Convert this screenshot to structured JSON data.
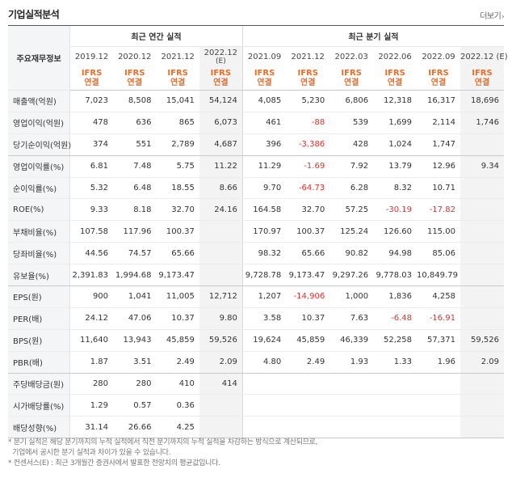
{
  "title": "기업실적분석",
  "more_label": "더보기",
  "header": {
    "row_label": "주요재무정보",
    "annual_group": "최근 연간 실적",
    "quarter_group": "최근 분기 실적",
    "annual_periods": [
      "2019.12",
      "2020.12",
      "2021.12",
      "2022.12\n(E)"
    ],
    "annual_periods_display": [
      {
        "line1": "2019.12",
        "line2": ""
      },
      {
        "line1": "2020.12",
        "line2": ""
      },
      {
        "line1": "2021.12",
        "line2": ""
      },
      {
        "line1": "2022.12",
        "line2": "(E)"
      }
    ],
    "quarter_periods_display": [
      {
        "line1": "2021.09",
        "line2": ""
      },
      {
        "line1": "2021.12",
        "line2": ""
      },
      {
        "line1": "2022.03",
        "line2": ""
      },
      {
        "line1": "2022.06",
        "line2": ""
      },
      {
        "line1": "2022.09",
        "line2": ""
      },
      {
        "line1": "2022.12 (E)",
        "line2": ""
      }
    ],
    "ifrs_line1": "IFRS",
    "ifrs_line2": "연결"
  },
  "rows": [
    {
      "label": "매출액(억원)",
      "values": [
        "7,023",
        "8,508",
        "15,041",
        "54,124",
        "4,085",
        "5,230",
        "6,806",
        "12,318",
        "16,317",
        "18,696"
      ]
    },
    {
      "label": "영업이익(억원)",
      "values": [
        "478",
        "636",
        "865",
        "6,073",
        "461",
        "-88",
        "539",
        "1,699",
        "2,114",
        "1,746"
      ]
    },
    {
      "label": "당기순이익(억원)",
      "values": [
        "374",
        "551",
        "2,789",
        "4,687",
        "396",
        "-3,386",
        "428",
        "1,024",
        "1,747",
        ""
      ]
    },
    {
      "label": "영업이익률(%)",
      "values": [
        "6.81",
        "7.48",
        "5.75",
        "11.22",
        "11.29",
        "-1.69",
        "7.92",
        "13.79",
        "12.96",
        "9.34"
      ]
    },
    {
      "label": "순이익률(%)",
      "values": [
        "5.32",
        "6.48",
        "18.55",
        "8.66",
        "9.70",
        "-64.73",
        "6.28",
        "8.32",
        "10.71",
        ""
      ]
    },
    {
      "label": "ROE(%)",
      "values": [
        "9.33",
        "8.18",
        "32.70",
        "24.16",
        "164.58",
        "32.70",
        "57.25",
        "-30.19",
        "-17.82",
        ""
      ]
    },
    {
      "label": "부채비율(%)",
      "values": [
        "107.58",
        "117.96",
        "100.37",
        "",
        "170.97",
        "100.37",
        "125.24",
        "126.60",
        "115.00",
        ""
      ]
    },
    {
      "label": "당좌비율(%)",
      "values": [
        "44.56",
        "74.57",
        "65.66",
        "",
        "98.32",
        "65.66",
        "90.82",
        "94.98",
        "85.06",
        ""
      ]
    },
    {
      "label": "유보율(%)",
      "values": [
        "2,391.83",
        "1,994.68",
        "9,173.47",
        "",
        "9,728.78",
        "9,173.47",
        "9,297.26",
        "9,778.03",
        "10,849.79",
        ""
      ]
    },
    {
      "label": "EPS(원)",
      "values": [
        "900",
        "1,041",
        "11,005",
        "12,712",
        "1,207",
        "-14,906",
        "1,000",
        "1,836",
        "4,258",
        ""
      ]
    },
    {
      "label": "PER(배)",
      "values": [
        "24.12",
        "47.06",
        "10.37",
        "9.80",
        "3.58",
        "10.37",
        "7.63",
        "-6.48",
        "-16.91",
        ""
      ]
    },
    {
      "label": "BPS(원)",
      "values": [
        "11,640",
        "13,943",
        "45,859",
        "59,526",
        "19,624",
        "45,859",
        "46,339",
        "52,258",
        "57,371",
        "59,526"
      ]
    },
    {
      "label": "PBR(배)",
      "values": [
        "1.87",
        "3.51",
        "2.49",
        "2.09",
        "4.80",
        "2.49",
        "1.93",
        "1.33",
        "1.96",
        "2.09"
      ]
    },
    {
      "label": "주당배당금(원)",
      "values": [
        "280",
        "280",
        "410",
        "414",
        "",
        "",
        "",
        "",
        "",
        ""
      ]
    },
    {
      "label": "시가배당률(%)",
      "values": [
        "1.29",
        "0.57",
        "0.36",
        "",
        "",
        "",
        "",
        "",
        "",
        ""
      ]
    },
    {
      "label": "배당성향(%)",
      "values": [
        "31.14",
        "26.66",
        "4.25",
        "",
        "",
        "",
        "",
        "",
        "",
        ""
      ]
    }
  ],
  "group_breaks_after": [
    2,
    8,
    12
  ],
  "notes": [
    "* 분기 실적은 해당 분기까지의 누적 실적에서 직전 분기까지의 누적 실적을 차감하는 방식으로 계산되므로,",
    "  기업에서 공시한 분기 실적과 차이가 있을 수 있습니다.",
    "* 컨센서스(E) : 최근 3개월간 증권사에서 발표한 전망치의 평균값입니다."
  ],
  "colors": {
    "ifrs": "#e96d2b",
    "negative": "#e0302c",
    "header_bg": "#f4f5f7",
    "estimate_bg": "#f3f3f3"
  }
}
